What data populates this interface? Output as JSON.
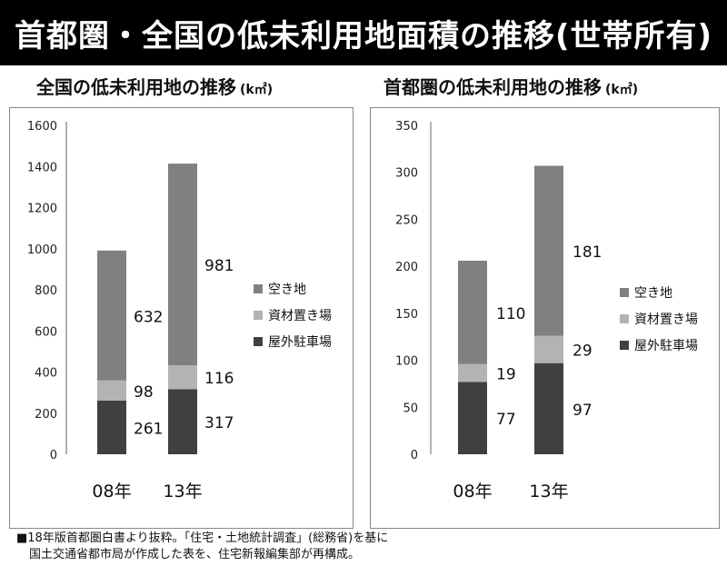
{
  "header": {
    "title": "首都圏・全国の低未利用地面積の推移(世帯所有)"
  },
  "colors": {
    "vacant": "#808080",
    "material": "#b3b3b3",
    "parking": "#404040"
  },
  "chart_data": [
    {
      "type": "bar",
      "stacked": true,
      "title": "全国の低未利用地の推移",
      "unit": "(k㎡)",
      "categories": [
        "08年",
        "13年"
      ],
      "series": [
        {
          "name": "屋外駐車場",
          "values": [
            261,
            317
          ]
        },
        {
          "name": "資材置き場",
          "values": [
            98,
            116
          ]
        },
        {
          "name": "空き地",
          "values": [
            632,
            981
          ]
        }
      ],
      "ylim": [
        0,
        1600
      ],
      "yticks": [
        "0",
        "200",
        "400",
        "600",
        "800",
        "1000",
        "1200",
        "1400",
        "1600"
      ],
      "legend": "right"
    },
    {
      "type": "bar",
      "stacked": true,
      "title": "首都圏の低未利用地の推移",
      "unit": "(k㎡)",
      "categories": [
        "08年",
        "13年"
      ],
      "series": [
        {
          "name": "屋外駐車場",
          "values": [
            77,
            97
          ]
        },
        {
          "name": "資材置き場",
          "values": [
            19,
            29
          ]
        },
        {
          "name": "空き地",
          "values": [
            110,
            181
          ]
        }
      ],
      "ylim": [
        0,
        350
      ],
      "yticks": [
        "0",
        "50",
        "100",
        "150",
        "200",
        "250",
        "300",
        "350"
      ],
      "legend": "right"
    }
  ],
  "footnote": {
    "line1": "■18年版首都圏白書より抜粋。「住宅・土地統計調査」(総務省)を基に",
    "line2": "国土交通省都市局が作成した表を、住宅新報編集部が再構成。"
  }
}
